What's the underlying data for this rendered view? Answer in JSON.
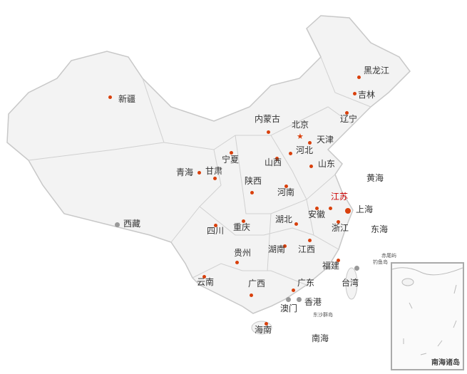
{
  "colors": {
    "land": "#f3f3f3",
    "border": "#c8c8c8",
    "dot": "#d9400c",
    "highlight": "#cc0000",
    "special_region": "#999999"
  },
  "provinces": [
    {
      "name": "黑龙江"
    },
    {
      "name": "吉林"
    },
    {
      "name": "辽宁"
    },
    {
      "name": "内蒙古"
    },
    {
      "name": "北京",
      "marker": "star"
    },
    {
      "name": "天津"
    },
    {
      "name": "河北"
    },
    {
      "name": "宁夏"
    },
    {
      "name": "山西"
    },
    {
      "name": "山东"
    },
    {
      "name": "青海"
    },
    {
      "name": "甘肃"
    },
    {
      "name": "陕西"
    },
    {
      "name": "河南"
    },
    {
      "name": "江苏",
      "highlighted": true
    },
    {
      "name": "上海"
    },
    {
      "name": "安徽"
    },
    {
      "name": "湖北"
    },
    {
      "name": "浙江"
    },
    {
      "name": "四川"
    },
    {
      "name": "重庆"
    },
    {
      "name": "西藏"
    },
    {
      "name": "贵州"
    },
    {
      "name": "湖南"
    },
    {
      "name": "江西"
    },
    {
      "name": "福建"
    },
    {
      "name": "云南"
    },
    {
      "name": "广西"
    },
    {
      "name": "广东"
    },
    {
      "name": "台湾"
    },
    {
      "name": "澳门"
    },
    {
      "name": "香港"
    },
    {
      "name": "海南"
    },
    {
      "name": "新疆"
    }
  ],
  "seas": [
    "黄海",
    "东海",
    "南海"
  ],
  "islands": [
    "赤尾屿",
    "钓鱼岛",
    "东沙群岛"
  ],
  "inset": {
    "title": "南海诸岛"
  }
}
